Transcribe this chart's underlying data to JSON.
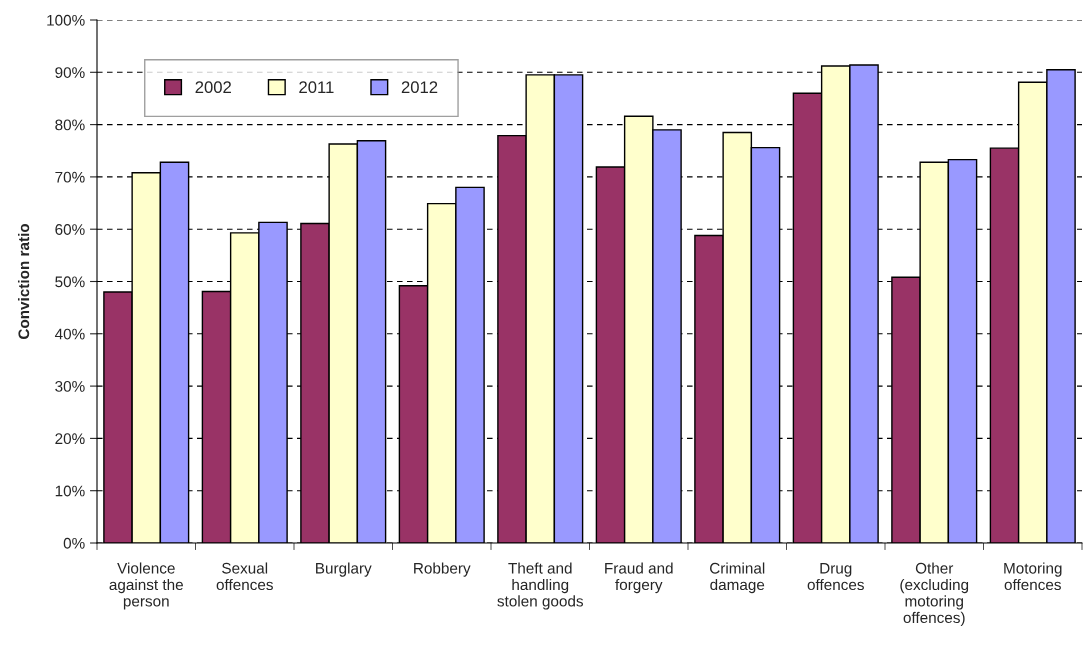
{
  "chart_data": {
    "type": "bar",
    "ylabel": "Conviction ratio",
    "categories": [
      "Violence against the person",
      "Sexual offences",
      "Burglary",
      "Robbery",
      "Theft and handling stolen goods",
      "Fraud and forgery",
      "Criminal damage",
      "Drug offences",
      "Other (excluding motoring offences)",
      "Motoring offences"
    ],
    "series": [
      {
        "name": "2002",
        "color": "#993366",
        "values": [
          48.0,
          48.1,
          61.1,
          49.2,
          77.9,
          71.9,
          58.8,
          86.0,
          50.8,
          75.5
        ]
      },
      {
        "name": "2011",
        "color": "#ffffcc",
        "values": [
          70.8,
          59.3,
          76.3,
          64.9,
          89.5,
          81.6,
          78.5,
          91.2,
          72.8,
          88.1
        ]
      },
      {
        "name": "2012",
        "color": "#9999ff",
        "values": [
          72.8,
          61.3,
          76.9,
          68.0,
          89.5,
          79.0,
          75.6,
          91.4,
          73.3,
          90.5
        ]
      }
    ],
    "ylim": [
      0,
      100
    ],
    "yticks": [
      {
        "value": 0,
        "label": "0%"
      },
      {
        "value": 10,
        "label": "10%"
      },
      {
        "value": 20,
        "label": "20%"
      },
      {
        "value": 30,
        "label": "30%"
      },
      {
        "value": 40,
        "label": "40%"
      },
      {
        "value": 50,
        "label": "50%"
      },
      {
        "value": 60,
        "label": "60%"
      },
      {
        "value": 70,
        "label": "70%"
      },
      {
        "value": 80,
        "label": "80%"
      },
      {
        "value": 90,
        "label": "90%"
      },
      {
        "value": 100,
        "label": "100%"
      }
    ],
    "grid": "y",
    "legend": "top left"
  }
}
